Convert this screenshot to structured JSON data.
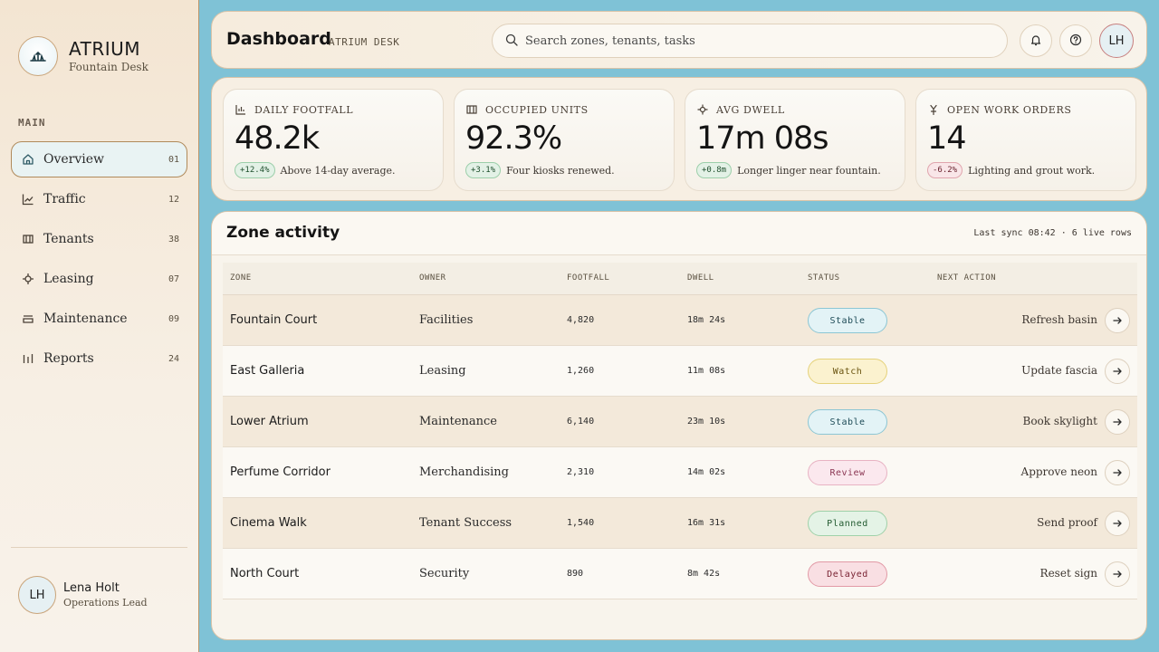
{
  "brand": {
    "name": "ATRIUM",
    "subtitle": "Fountain Desk"
  },
  "nav": {
    "heading": "MAIN",
    "items": [
      {
        "label": "Overview",
        "count": "01",
        "icon": "home-icon",
        "active": true
      },
      {
        "label": "Traffic",
        "count": "12",
        "icon": "chart-line-icon"
      },
      {
        "label": "Tenants",
        "count": "38",
        "icon": "storefront-icon"
      },
      {
        "label": "Leasing",
        "count": "07",
        "icon": "pin-icon"
      },
      {
        "label": "Maintenance",
        "count": "09",
        "icon": "tray-icon"
      },
      {
        "label": "Reports",
        "count": "24",
        "icon": "bars-icon"
      }
    ]
  },
  "user": {
    "initials": "LH",
    "name": "Lena Holt",
    "role": "Operations Lead"
  },
  "header": {
    "title": "Dashboard",
    "subtitle": "ATRIUM DESK",
    "search_placeholder": "Search zones, tenants, tasks",
    "avatar_initials": "LH"
  },
  "kpis": [
    {
      "label": "DAILY FOOTFALL",
      "value": "48.2k",
      "delta": "+12.4%",
      "trend": "up",
      "note": "Above 14-day average.",
      "icon": "bar-chart-icon"
    },
    {
      "label": "OCCUPIED UNITS",
      "value": "92.3%",
      "delta": "+3.1%",
      "trend": "up",
      "note": "Four kiosks renewed.",
      "icon": "storefront-icon"
    },
    {
      "label": "AVG DWELL",
      "value": "17m 08s",
      "delta": "+0.8m",
      "trend": "up",
      "note": "Longer linger near fountain.",
      "icon": "pin-icon"
    },
    {
      "label": "OPEN WORK ORDERS",
      "value": "14",
      "delta": "-6.2%",
      "trend": "down",
      "note": "Lighting and grout work.",
      "icon": "fountain-icon"
    }
  ],
  "zones": {
    "title": "Zone activity",
    "meta": "Last sync 08:42 · 6 live rows",
    "columns": {
      "zone": "ZONE",
      "owner": "OWNER",
      "footfall": "FOOTFALL",
      "dwell": "DWELL",
      "status": "STATUS",
      "action": "NEXT ACTION"
    },
    "rows": [
      {
        "zone": "Fountain Court",
        "owner": "Facilities",
        "footfall": "4,820",
        "dwell": "18m 24s",
        "status": "Stable",
        "action": "Refresh basin"
      },
      {
        "zone": "East Galleria",
        "owner": "Leasing",
        "footfall": "1,260",
        "dwell": "11m 08s",
        "status": "Watch",
        "action": "Update fascia"
      },
      {
        "zone": "Lower Atrium",
        "owner": "Maintenance",
        "footfall": "6,140",
        "dwell": "23m 10s",
        "status": "Stable",
        "action": "Book skylight"
      },
      {
        "zone": "Perfume Corridor",
        "owner": "Merchandising",
        "footfall": "2,310",
        "dwell": "14m 02s",
        "status": "Review",
        "action": "Approve neon"
      },
      {
        "zone": "Cinema Walk",
        "owner": "Tenant Success",
        "footfall": "1,540",
        "dwell": "16m 31s",
        "status": "Planned",
        "action": "Send proof"
      },
      {
        "zone": "North Court",
        "owner": "Security",
        "footfall": "890",
        "dwell": "8m 42s",
        "status": "Delayed",
        "action": "Reset sign"
      }
    ]
  },
  "status_colors": {
    "Stable": {
      "bg": "#e3f3f6",
      "border": "#8cc6d4",
      "text": "#1e4b57"
    },
    "Watch": {
      "bg": "#fbf2cf",
      "border": "#e5d27b",
      "text": "#6a5410"
    },
    "Review": {
      "bg": "#fbe8ee",
      "border": "#e8b3c3",
      "text": "#8a3552"
    },
    "Planned": {
      "bg": "#e4f3e6",
      "border": "#9fd1a9",
      "text": "#225a30"
    },
    "Delayed": {
      "bg": "#f9dfe3",
      "border": "#e29aa6",
      "text": "#7a2434"
    }
  }
}
